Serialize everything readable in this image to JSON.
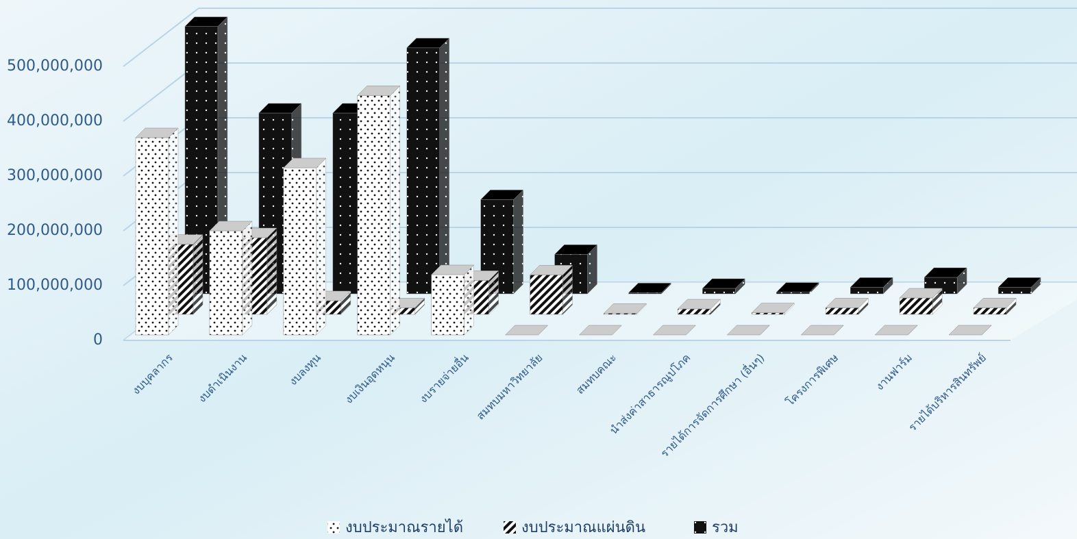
{
  "chart_data": {
    "type": "bar3d",
    "categories": [
      "งบบุคลากร",
      "งบดำเนินงาน",
      "งบลงทุน",
      "งบเงินอุดหนุน",
      "งบรายจ่ายอื่น",
      "สมทบมหาวิทยาลัย",
      "สมทบคณะ",
      "นำส่งค่าสาธารณูปโภค",
      "รายได้การจัดการศึกษา (อื่นๆ)",
      "โครงการพิเศษ",
      "งานฟาร์ม",
      "รายได้บริหารสินทรัพย์"
    ],
    "series": [
      {
        "name": "งบประมาณรายได้",
        "color": "#ffffff",
        "values": [
          360000000,
          190000000,
          305000000,
          437000000,
          110000000,
          0,
          0,
          0,
          0,
          0,
          0,
          0
        ]
      },
      {
        "name": "งบประมาณแผ่นดิน",
        "color": "#555555",
        "values": [
          128000000,
          140000000,
          25000000,
          12000000,
          62000000,
          72000000,
          2000000,
          10000000,
          3000000,
          12000000,
          30000000,
          12000000
        ]
      },
      {
        "name": "รวม",
        "color": "#111111",
        "values": [
          488000000,
          330000000,
          330000000,
          449000000,
          172000000,
          72000000,
          2000000,
          10000000,
          3000000,
          12000000,
          30000000,
          12000000
        ]
      }
    ],
    "ylim": [
      0,
      550000000
    ],
    "yticks": [
      0,
      {
        "value": 100000000,
        "label": "100,000,000"
      },
      {
        "value": 200000000,
        "label": "200,000,000"
      },
      {
        "value": 300000000,
        "label": "300,000,000"
      },
      {
        "value": 400000000,
        "label": "400,000,000"
      },
      {
        "value": 500000000,
        "label": "500,000,000"
      }
    ],
    "grid": true
  }
}
